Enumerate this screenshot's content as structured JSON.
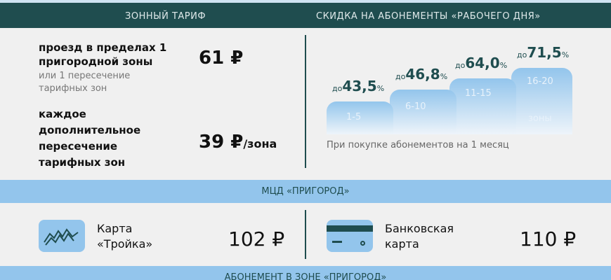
{
  "header": {
    "zone_tariff": "ЗОННЫЙ ТАРИФ",
    "discount": "СКИДКА НА АБОНЕМЕНТЫ «РАБОЧЕГО ДНЯ»"
  },
  "tariff": {
    "item1_title": "проезд в пределах 1 пригородной зоны",
    "item1_sub": "или 1 пересечение тарифных зон",
    "item1_price": "61 ₽",
    "item2_title": "каждое дополнительное пересечение тарифных зон",
    "item2_price": "39 ₽",
    "item2_unit": "/зона"
  },
  "discounts": {
    "prefix": "до",
    "steps": [
      {
        "zones": "1-5",
        "value": "43,5"
      },
      {
        "zones": "6-10",
        "value": "46,8"
      },
      {
        "zones": "11-15",
        "value": "64,0"
      },
      {
        "zones": "16-20",
        "value": "71,5"
      }
    ],
    "percent": "%",
    "zones_label": "зоны",
    "note": "При покупке абонементов на 1 месяц"
  },
  "mcd": {
    "title": "МЦД «ПРИГОРОД»",
    "troika_label": "Карта «Тройка»",
    "troika_price": "102 ₽",
    "bank_label": "Банковская карта",
    "bank_price": "110 ₽"
  },
  "footer": {
    "title": "АБОНЕМЕНТ В ЗОНЕ «ПРИГОРОД»"
  },
  "colors": {
    "header": "#1f4d4f",
    "band": "#93c5ec",
    "background": "#f0f0f0"
  }
}
